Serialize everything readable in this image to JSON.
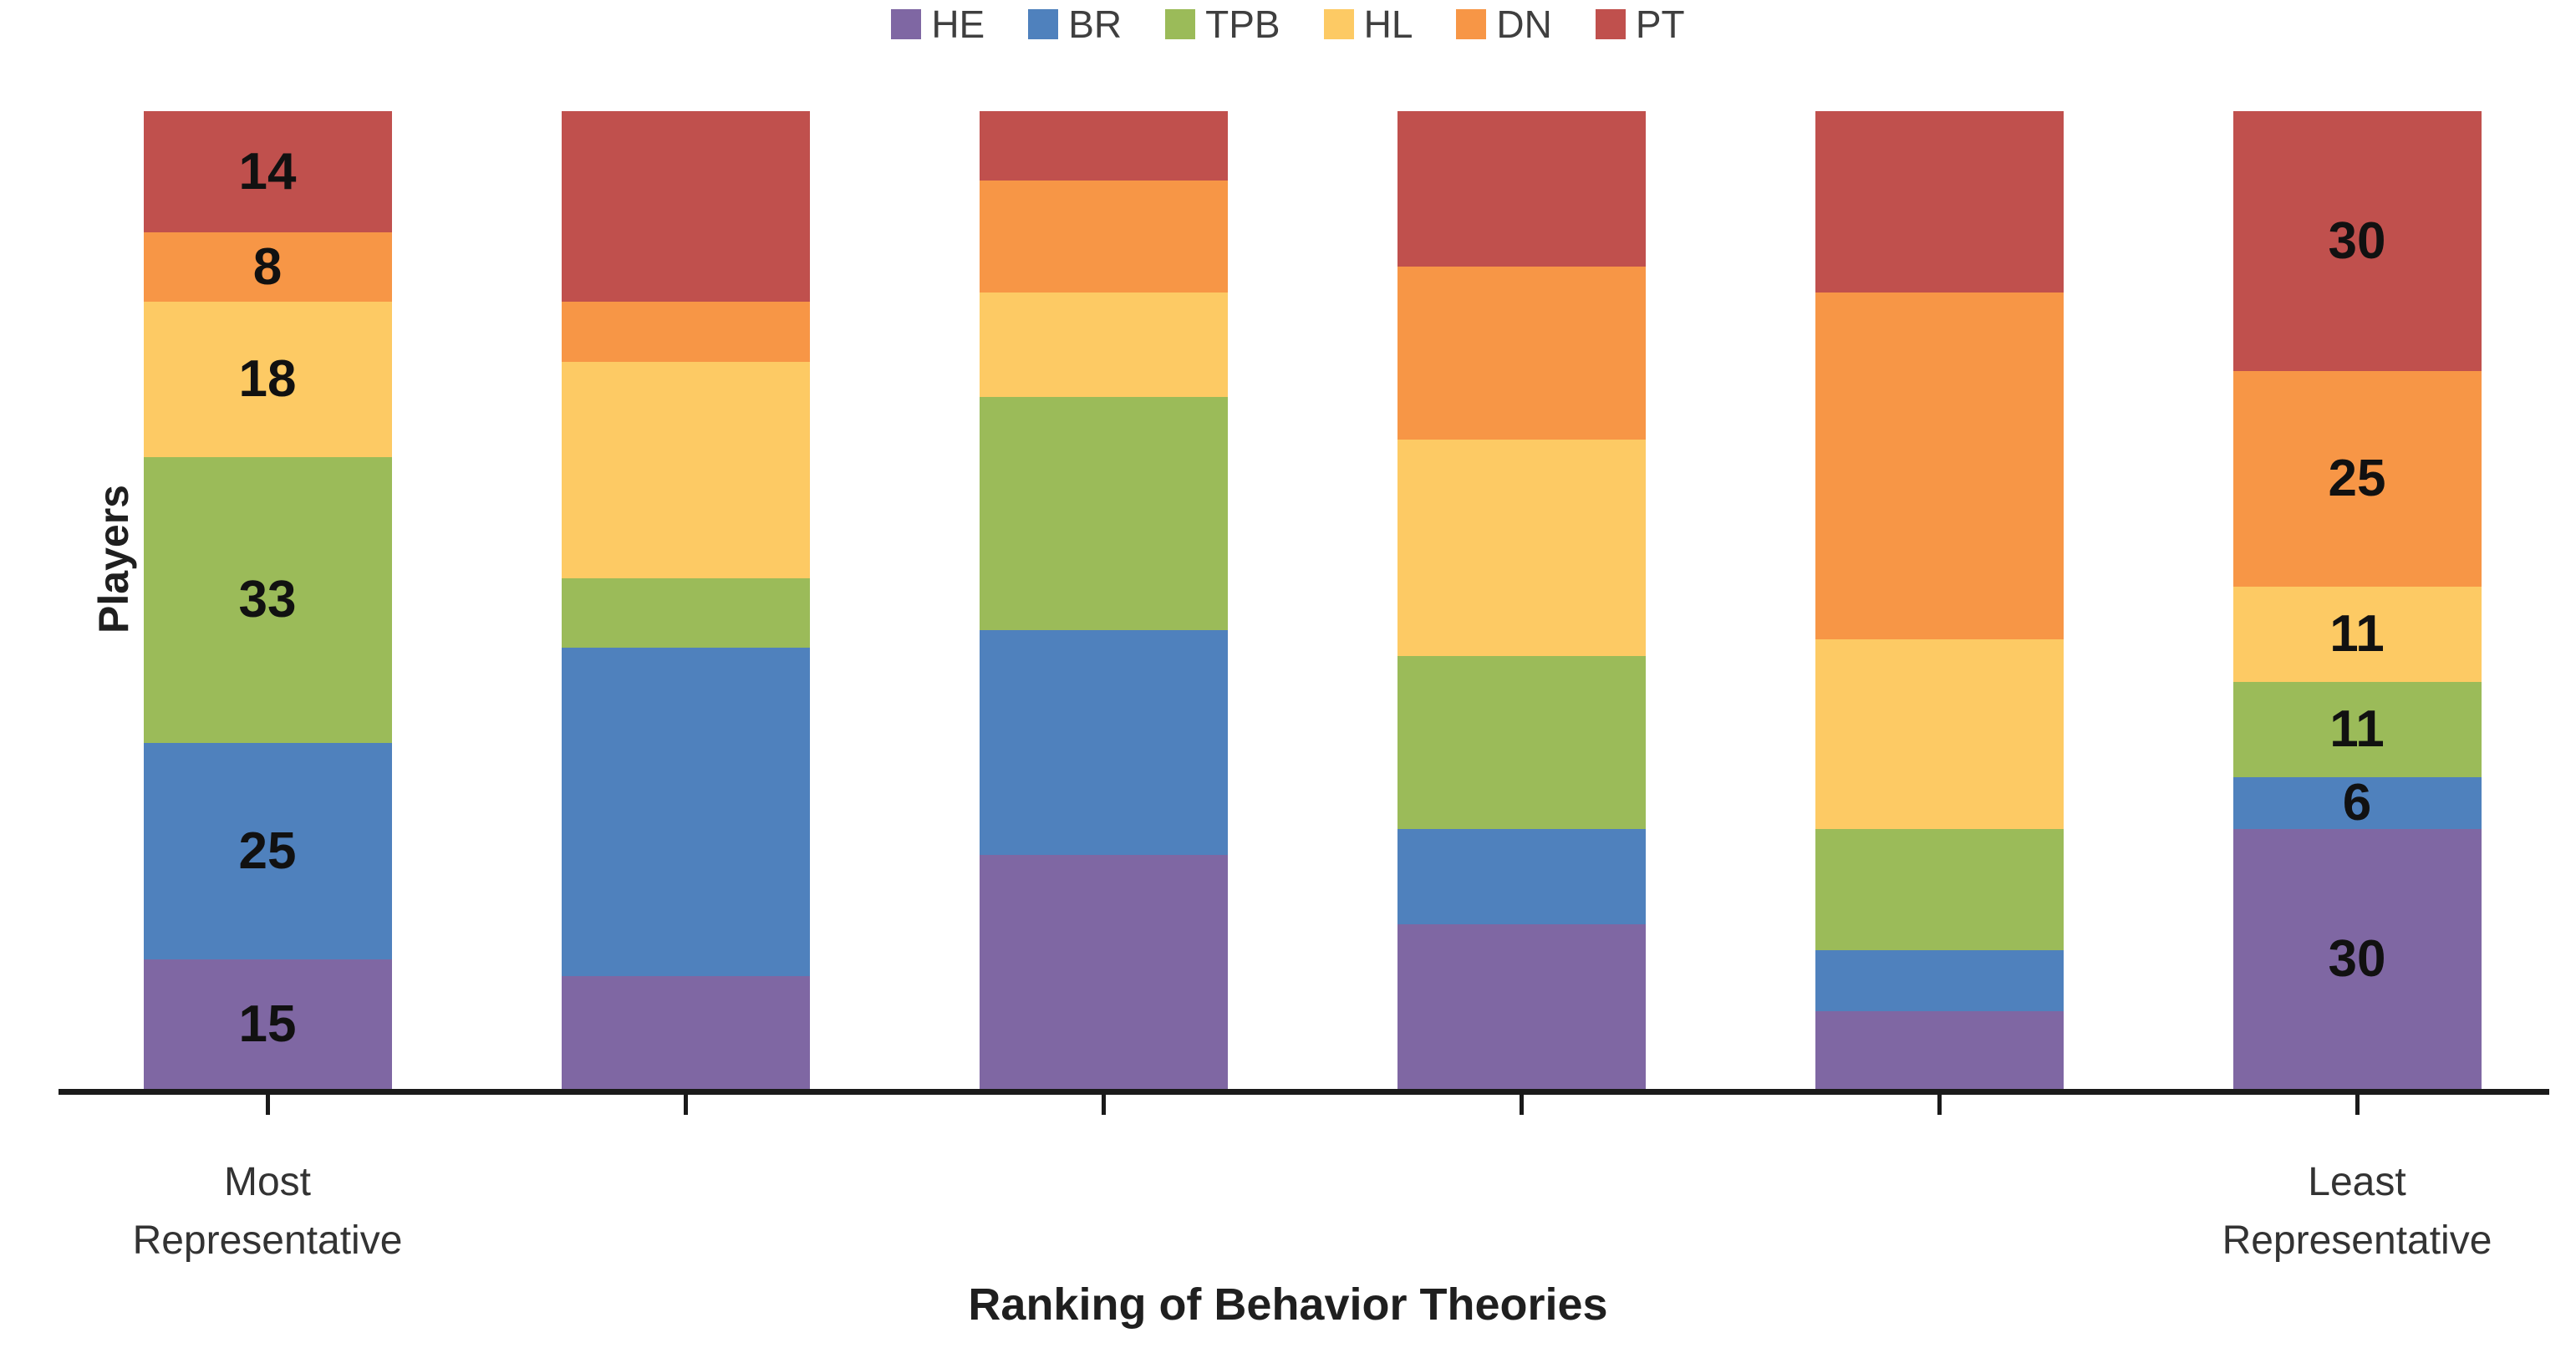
{
  "chart_data": {
    "type": "bar",
    "stacked": true,
    "title": "",
    "xlabel": "Ranking of Behavior Theories",
    "ylabel": "Players",
    "total_per_bar": 113,
    "grid": false,
    "legend_position": "top",
    "categories": [
      "Most\nRepresentative",
      "",
      "",
      "",
      "",
      "Least\nRepresentative"
    ],
    "series": [
      {
        "name": "HE",
        "color": "#7F67A3",
        "values": [
          15,
          13,
          27,
          19,
          9,
          30
        ]
      },
      {
        "name": "BR",
        "color": "#4F81BD",
        "values": [
          25,
          38,
          26,
          11,
          7,
          6
        ]
      },
      {
        "name": "TPB",
        "color": "#9BBB59",
        "values": [
          33,
          8,
          27,
          20,
          14,
          11
        ]
      },
      {
        "name": "HL",
        "color": "#FDCA64",
        "values": [
          18,
          25,
          12,
          25,
          22,
          11
        ]
      },
      {
        "name": "DN",
        "color": "#F79646",
        "values": [
          8,
          7,
          13,
          20,
          40,
          25
        ]
      },
      {
        "name": "PT",
        "color": "#C0504D",
        "values": [
          14,
          22,
          8,
          18,
          21,
          30
        ]
      }
    ],
    "legend_order": [
      "HE",
      "BR",
      "TPB",
      "HL",
      "DN",
      "PT"
    ],
    "bars_with_value_labels": [
      0,
      5
    ],
    "visible_value_labels": {
      "first_bar_top_to_bottom": [
        14,
        8,
        18,
        33,
        25,
        15
      ],
      "last_bar_top_to_bottom": [
        30,
        25,
        11,
        11,
        6,
        30
      ]
    },
    "axis_color": "#1a1a1a"
  }
}
